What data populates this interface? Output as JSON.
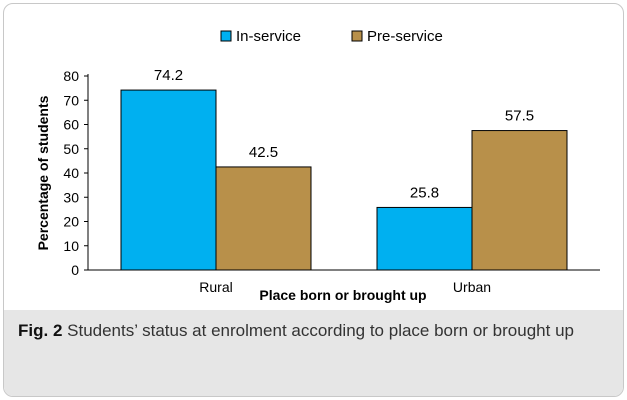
{
  "chart_data": {
    "type": "bar",
    "categories": [
      "Rural",
      "Urban"
    ],
    "series": [
      {
        "name": "In-service",
        "values": [
          74.2,
          25.8
        ],
        "color": "#00B0F0"
      },
      {
        "name": "Pre-service",
        "values": [
          42.5,
          57.5
        ],
        "color": "#B8904A"
      }
    ],
    "xlabel": "Place born or brought up",
    "ylabel": "Percentage of students",
    "ylim": [
      0,
      80
    ],
    "yticks": [
      0,
      10,
      20,
      30,
      40,
      50,
      60,
      70,
      80
    ],
    "data_labels": [
      [
        "74.2",
        "25.8"
      ],
      [
        "42.5",
        "57.5"
      ]
    ],
    "legend_position": "top-center",
    "grid": false
  },
  "caption": {
    "label": "Fig. 2",
    "text": " Students’ status at enrolment according to place born or brought up"
  }
}
